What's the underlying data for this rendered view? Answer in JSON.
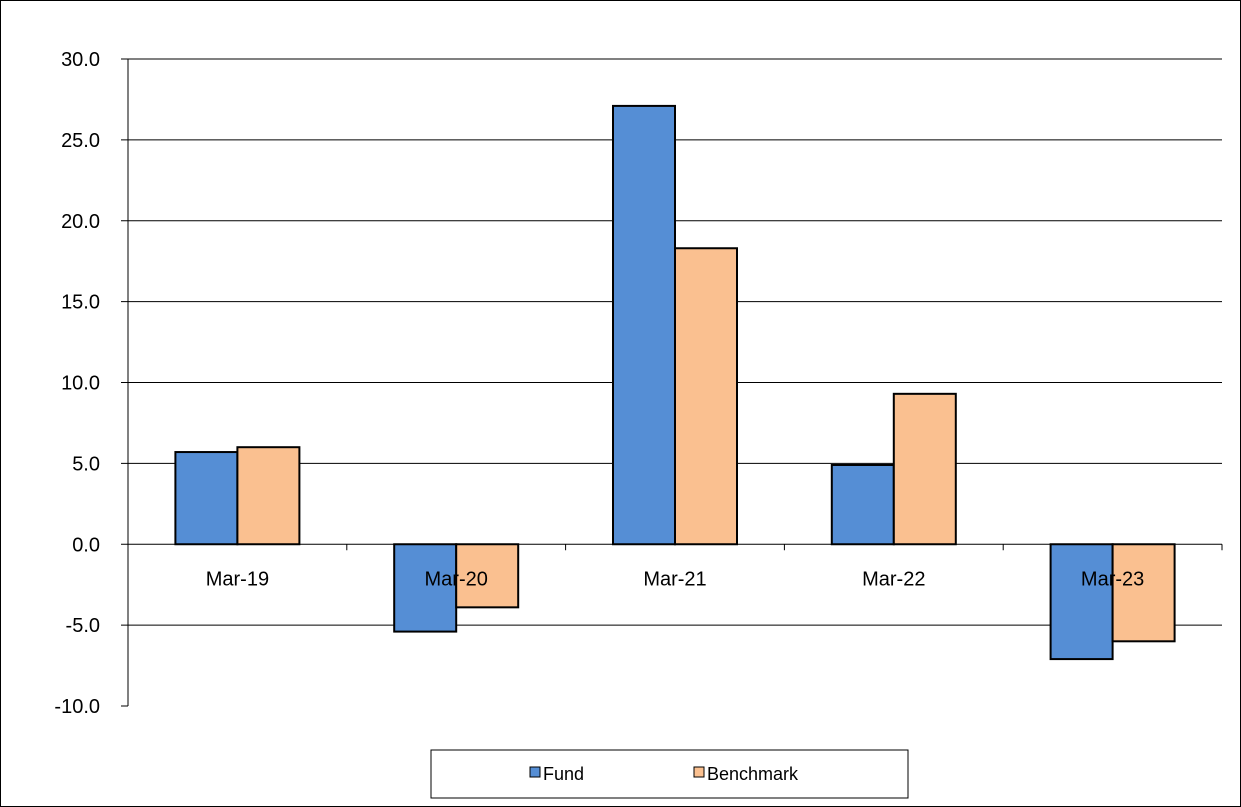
{
  "chart_data": {
    "type": "bar",
    "categories": [
      "Mar-19",
      "Mar-20",
      "Mar-21",
      "Mar-22",
      "Mar-23"
    ],
    "series": [
      {
        "name": "Fund",
        "color": "#558ed5",
        "values": [
          5.7,
          -5.4,
          27.1,
          4.9,
          -7.1
        ]
      },
      {
        "name": "Benchmark",
        "color": "#fac090",
        "values": [
          6.0,
          -3.9,
          18.3,
          9.3,
          -6.0
        ]
      }
    ],
    "ylim": [
      -10,
      30
    ],
    "yticks": [
      "-10.0",
      "-5.0",
      "0.0",
      "5.0",
      "10.0",
      "15.0",
      "20.0",
      "25.0",
      "30.0"
    ],
    "gridlines": true,
    "legend": "bottom-center",
    "title": "",
    "xlabel": "",
    "ylabel": ""
  }
}
